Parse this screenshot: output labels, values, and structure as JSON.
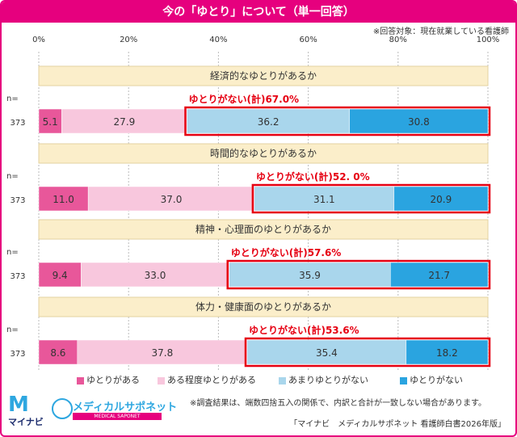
{
  "title": "今の「ゆとり」について（単一回答）",
  "note": "※回答対象：現在就業している看護師",
  "footnote": "※調査結果は、端数四捨五入の関係で、内訳と合計が一致しない場合があります。",
  "source": "「マイナビ　メディカルサポネット 看護師白書2026年版」",
  "logo_mynavi": "マイナビ",
  "logo_medical": "メディカルサポネット",
  "logo_medical_sub": "MEDICAL SAPONET",
  "axis_ticks": [
    "0%",
    "20%",
    "40%",
    "60%",
    "80%",
    "100%"
  ],
  "n_prefix": "n=",
  "colors": [
    "#e8579a",
    "#f8c7dd",
    "#a9d6ec",
    "#2aa4e0"
  ],
  "highlight_color": "#e60012",
  "category_band_color": "#fbeeca",
  "chart_data": {
    "type": "bar",
    "stacked": true,
    "orientation": "horizontal",
    "xlim": [
      0,
      100
    ],
    "series_names": [
      "ゆとりがある",
      "ある程度ゆとりがある",
      "あまりゆとりがない",
      "ゆとりがない"
    ],
    "rows": [
      {
        "category": "経済的なゆとりがあるか",
        "n": "373",
        "values": [
          5.1,
          27.9,
          36.2,
          30.8
        ],
        "highlight_label": "ゆとりがない(計)67.0%"
      },
      {
        "category": "時間的なゆとりがあるか",
        "n": "373",
        "values": [
          11.0,
          37.0,
          31.1,
          20.9
        ],
        "highlight_label": "ゆとりがない(計)52. 0%"
      },
      {
        "category": "精神・心理面のゆとりがあるか",
        "n": "373",
        "values": [
          9.4,
          33.0,
          35.9,
          21.7
        ],
        "highlight_label": "ゆとりがない(計)57.6%"
      },
      {
        "category": "体力・健康面のゆとりがあるか",
        "n": "373",
        "values": [
          8.6,
          37.8,
          35.4,
          18.2
        ],
        "highlight_label": "ゆとりがない(計)53.6%"
      }
    ]
  }
}
